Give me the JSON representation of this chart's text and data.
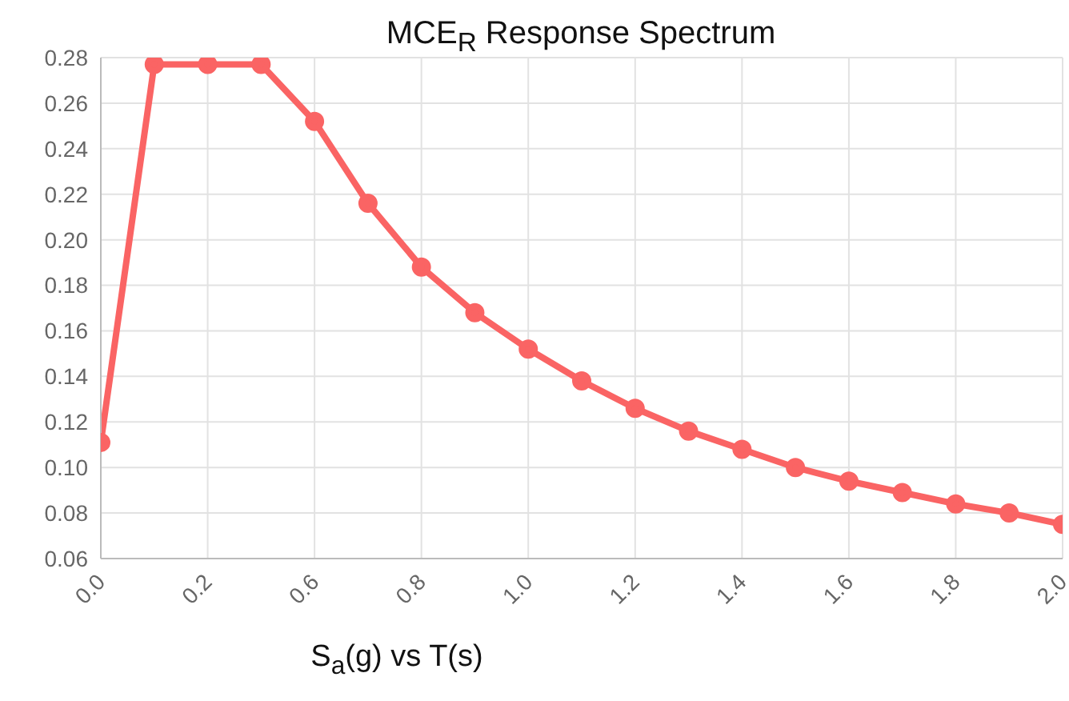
{
  "chart_data": {
    "type": "line",
    "title": "MCE$_{R}$ Response Spectrum",
    "xlabel": "S$_{a}$(g) vs T(s)",
    "categories": [
      "0.0",
      null,
      "0.2",
      null,
      "0.6",
      null,
      "0.8",
      null,
      "1.0",
      null,
      "1.2",
      null,
      "1.4",
      null,
      "1.6",
      null,
      "1.8",
      null,
      "2.0"
    ],
    "series": [
      {
        "color": "#fa6464",
        "values": [
          0.111,
          0.277,
          0.277,
          0.277,
          0.252,
          0.216,
          0.188,
          0.168,
          0.152,
          0.138,
          0.126,
          0.116,
          0.108,
          0.1,
          0.094,
          0.089,
          0.084,
          0.08,
          0.075
        ]
      }
    ],
    "ylim": [
      0.06,
      0.28
    ],
    "yticks": [
      0.06,
      0.08,
      {
        "value": 0.1,
        "label": "0.10"
      },
      0.12,
      0.14,
      0.16,
      0.18,
      {
        "value": 0.2,
        "label": "0.20"
      },
      0.22,
      0.24,
      0.26,
      0.28
    ],
    "grid": true,
    "legend": false,
    "marker": "circle",
    "line_style": "solid"
  }
}
